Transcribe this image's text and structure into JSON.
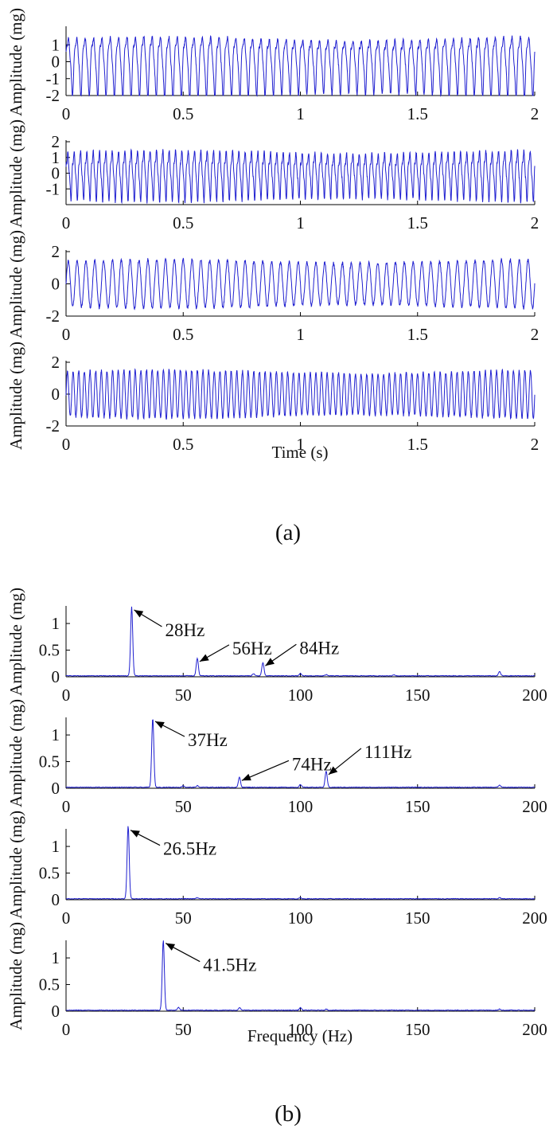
{
  "panel_labels": {
    "a": "(a)",
    "b": "(b)"
  },
  "chart_data": [
    {
      "type": "line",
      "group": "a",
      "ylabel": "Amplitude (mg)",
      "xlabel": "",
      "xlim": [
        0,
        2
      ],
      "ylim": [
        -2,
        2
      ],
      "xticks": [
        0,
        0.5,
        1,
        1.5,
        2
      ],
      "xtick_labels": [
        "0",
        "0.5",
        "1",
        "1.5",
        "2"
      ],
      "yticks": [
        -2,
        -1,
        0,
        1
      ],
      "ytick_labels": [
        "-2",
        "-1",
        "0",
        "1"
      ],
      "signal": {
        "frequency_hz": 28,
        "amplitude": 1.5,
        "harmonics": [
          [
            2,
            0.35
          ],
          [
            3,
            0.25
          ]
        ],
        "duration_s": 2
      },
      "annotations": []
    },
    {
      "type": "line",
      "group": "a",
      "ylabel": "Amplitude (mg)",
      "xlabel": "",
      "xlim": [
        0,
        2
      ],
      "ylim": [
        -2,
        2
      ],
      "xticks": [
        0,
        0.5,
        1,
        1.5,
        2
      ],
      "xtick_labels": [
        "0",
        "0.5",
        "1",
        "1.5",
        "2"
      ],
      "yticks": [
        -1,
        0,
        1,
        2
      ],
      "ytick_labels": [
        "-1",
        "0",
        "1",
        "2"
      ],
      "signal": {
        "frequency_hz": 37,
        "amplitude": 1.3,
        "harmonics": [
          [
            2,
            0.2
          ],
          [
            3,
            0.3
          ]
        ],
        "duration_s": 2
      },
      "annotations": []
    },
    {
      "type": "line",
      "group": "a",
      "ylabel": "Amplitude (mg)",
      "xlabel": "",
      "xlim": [
        0,
        2
      ],
      "ylim": [
        -2,
        2
      ],
      "xticks": [
        0,
        0.5,
        1,
        1.5,
        2
      ],
      "xtick_labels": [
        "0",
        "0.5",
        "1",
        "1.5",
        "2"
      ],
      "yticks": [
        -2,
        0,
        2
      ],
      "ytick_labels": [
        "-2",
        "0",
        "2"
      ],
      "signal": {
        "frequency_hz": 26.5,
        "amplitude": 1.4,
        "harmonics": [],
        "duration_s": 2
      },
      "annotations": []
    },
    {
      "type": "line",
      "group": "a",
      "ylabel": "Amplitude (mg)",
      "xlabel": "Time (s)",
      "xlim": [
        0,
        2
      ],
      "ylim": [
        -2,
        2
      ],
      "xticks": [
        0,
        0.5,
        1,
        1.5,
        2
      ],
      "xtick_labels": [
        "0",
        "0.5",
        "1",
        "1.5",
        "2"
      ],
      "yticks": [
        -2,
        0,
        2
      ],
      "ytick_labels": [
        "-2",
        "0",
        "2"
      ],
      "signal": {
        "frequency_hz": 41.5,
        "amplitude": 1.4,
        "harmonics": [],
        "duration_s": 2
      },
      "annotations": []
    },
    {
      "type": "line",
      "group": "b",
      "ylabel": "Amplitude (mg)",
      "xlabel": "",
      "xlim": [
        0,
        200
      ],
      "ylim": [
        0,
        1.3
      ],
      "xticks": [
        0,
        50,
        100,
        150,
        200
      ],
      "xtick_labels": [
        "0",
        "50",
        "100",
        "150",
        "200"
      ],
      "yticks": [
        0,
        0.5,
        1
      ],
      "ytick_labels": [
        "0",
        "0.5",
        "1"
      ],
      "peaks": [
        [
          28,
          1.3
        ],
        [
          56,
          0.33
        ],
        [
          84,
          0.25
        ],
        [
          80,
          0.04
        ],
        [
          100,
          0.04
        ],
        [
          111,
          0.02
        ],
        [
          140,
          0.02
        ],
        [
          185,
          0.08
        ]
      ],
      "annotations": [
        {
          "x": 28,
          "y": 1.3,
          "label": "28Hz"
        },
        {
          "x": 56,
          "y": 0.33,
          "label": "56Hz"
        },
        {
          "x": 84,
          "y": 0.25,
          "label": "84Hz"
        }
      ]
    },
    {
      "type": "line",
      "group": "b",
      "ylabel": "Amplitude (mg)",
      "xlabel": "",
      "xlim": [
        0,
        200
      ],
      "ylim": [
        0,
        1.3
      ],
      "xticks": [
        0,
        50,
        100,
        150,
        200
      ],
      "xtick_labels": [
        "0",
        "50",
        "100",
        "150",
        "200"
      ],
      "yticks": [
        0,
        0.5,
        1
      ],
      "ytick_labels": [
        "0",
        "0.5",
        "1"
      ],
      "peaks": [
        [
          37,
          1.3
        ],
        [
          74,
          0.19
        ],
        [
          111,
          0.3
        ],
        [
          50,
          0.03
        ],
        [
          56,
          0.03
        ],
        [
          100,
          0.05
        ],
        [
          185,
          0.04
        ]
      ],
      "annotations": [
        {
          "x": 37,
          "y": 1.3,
          "label": "37Hz"
        },
        {
          "x": 74,
          "y": 0.19,
          "label": "74Hz"
        },
        {
          "x": 111,
          "y": 0.3,
          "label": "111Hz"
        }
      ]
    },
    {
      "type": "line",
      "group": "b",
      "ylabel": "Amplitude (mg)",
      "xlabel": "",
      "xlim": [
        0,
        200
      ],
      "ylim": [
        0,
        1.3
      ],
      "xticks": [
        0,
        50,
        100,
        150,
        200
      ],
      "xtick_labels": [
        "0",
        "50",
        "100",
        "150",
        "200"
      ],
      "yticks": [
        0,
        0.5,
        1
      ],
      "ytick_labels": [
        "0",
        "0.5",
        "1"
      ],
      "peaks": [
        [
          26.5,
          1.38
        ],
        [
          56,
          0.02
        ],
        [
          100,
          0.02
        ],
        [
          185,
          0.02
        ]
      ],
      "annotations": [
        {
          "x": 26.5,
          "y": 1.38,
          "label": "26.5Hz"
        }
      ]
    },
    {
      "type": "line",
      "group": "b",
      "ylabel": "Amplitude (mg)",
      "xlabel": "Frequency (Hz)",
      "xlim": [
        0,
        200
      ],
      "ylim": [
        0,
        1.3
      ],
      "xticks": [
        0,
        50,
        100,
        150,
        200
      ],
      "xtick_labels": [
        "0",
        "50",
        "100",
        "150",
        "200"
      ],
      "yticks": [
        0,
        0.5,
        1
      ],
      "ytick_labels": [
        "0",
        "0.5",
        "1"
      ],
      "peaks": [
        [
          41.5,
          1.32
        ],
        [
          48,
          0.05
        ],
        [
          74,
          0.05
        ],
        [
          100,
          0.05
        ],
        [
          111,
          0.02
        ],
        [
          185,
          0.02
        ]
      ],
      "annotations": [
        {
          "x": 41.5,
          "y": 1.32,
          "label": "41.5Hz"
        }
      ]
    }
  ]
}
